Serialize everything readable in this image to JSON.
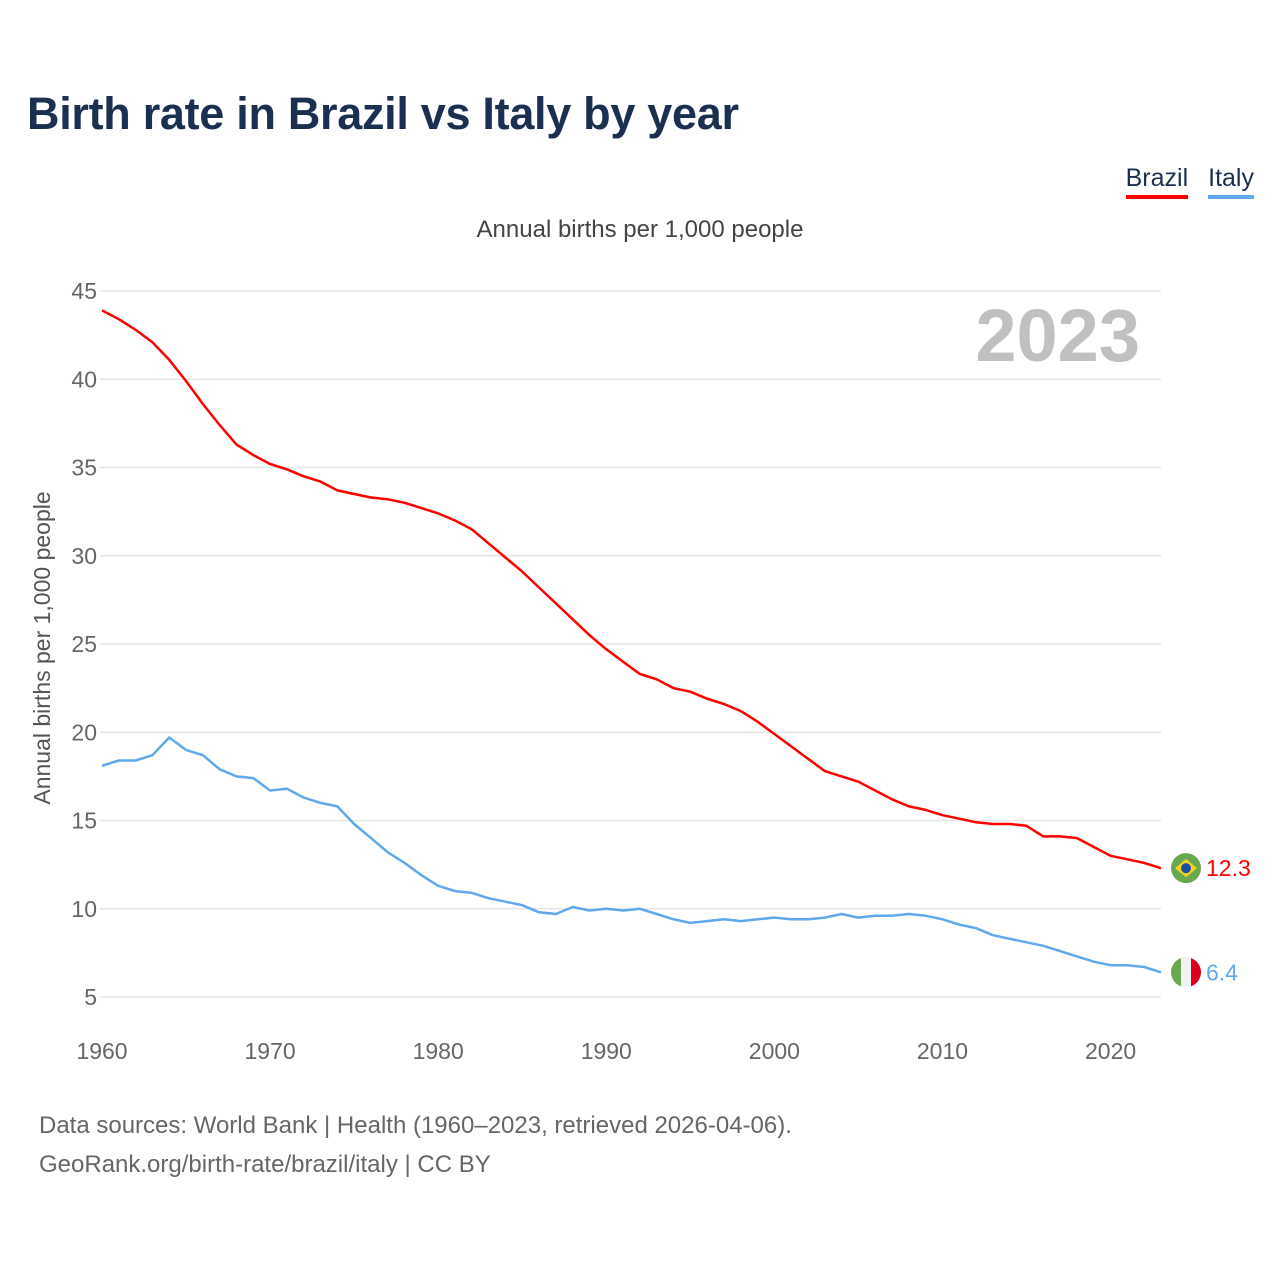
{
  "title": "Birth rate in Brazil vs Italy by year",
  "footer": {
    "line1": "Data sources: World Bank | Health (1960–2023, retrieved 2026-04-06).",
    "line2": "GeoRank.org/birth-rate/brazil/italy | CC BY"
  },
  "chart_data": {
    "type": "line",
    "title": "Birth rate in Brazil vs Italy by year",
    "subtitle": "Annual births per 1,000 people",
    "xlabel": "",
    "ylabel": "Annual births per 1,000 people",
    "year_label": "2023",
    "xlim": [
      1960,
      2023
    ],
    "ylim": [
      5,
      45
    ],
    "x_ticks": [
      "1960",
      "1970",
      "1980",
      "1990",
      "2000",
      "2010",
      "2020"
    ],
    "y_ticks": [
      "5",
      "10",
      "15",
      "20",
      "25",
      "30",
      "35",
      "40",
      "45"
    ],
    "grid": true,
    "legend_position": "top-right",
    "x": [
      1960,
      1961,
      1962,
      1963,
      1964,
      1965,
      1966,
      1967,
      1968,
      1969,
      1970,
      1971,
      1972,
      1973,
      1974,
      1975,
      1976,
      1977,
      1978,
      1979,
      1980,
      1981,
      1982,
      1983,
      1984,
      1985,
      1986,
      1987,
      1988,
      1989,
      1990,
      1991,
      1992,
      1993,
      1994,
      1995,
      1996,
      1997,
      1998,
      1999,
      2000,
      2001,
      2002,
      2003,
      2004,
      2005,
      2006,
      2007,
      2008,
      2009,
      2010,
      2011,
      2012,
      2013,
      2014,
      2015,
      2016,
      2017,
      2018,
      2019,
      2020,
      2021,
      2022,
      2023
    ],
    "series": [
      {
        "name": "Brazil",
        "color": "#ff0000",
        "end_label": "12.3",
        "flag": "brazil-flag",
        "values": [
          43.9,
          43.4,
          42.8,
          42.1,
          41.1,
          39.9,
          38.6,
          37.4,
          36.3,
          35.7,
          35.2,
          34.9,
          34.5,
          34.2,
          33.7,
          33.5,
          33.3,
          33.2,
          33.0,
          32.7,
          32.4,
          32.0,
          31.5,
          30.7,
          29.9,
          29.1,
          28.2,
          27.3,
          26.4,
          25.5,
          24.7,
          24.0,
          23.3,
          23.0,
          22.5,
          22.3,
          21.9,
          21.6,
          21.2,
          20.6,
          19.9,
          19.2,
          18.5,
          17.8,
          17.5,
          17.2,
          16.7,
          16.2,
          15.8,
          15.6,
          15.3,
          15.1,
          14.9,
          14.8,
          14.8,
          14.7,
          14.1,
          14.1,
          14.0,
          13.5,
          13.0,
          12.8,
          12.6,
          12.3
        ]
      },
      {
        "name": "Italy",
        "color": "#5fa8ec",
        "end_label": "6.4",
        "flag": "italy-flag",
        "values": [
          18.1,
          18.4,
          18.4,
          18.7,
          19.7,
          19.0,
          18.7,
          17.9,
          17.5,
          17.4,
          16.7,
          16.8,
          16.3,
          16.0,
          15.8,
          14.8,
          14.0,
          13.2,
          12.6,
          11.9,
          11.3,
          11.0,
          10.9,
          10.6,
          10.4,
          10.2,
          9.8,
          9.7,
          10.1,
          9.9,
          10.0,
          9.9,
          10.0,
          9.7,
          9.4,
          9.2,
          9.3,
          9.4,
          9.3,
          9.4,
          9.5,
          9.4,
          9.4,
          9.5,
          9.7,
          9.5,
          9.6,
          9.6,
          9.7,
          9.6,
          9.4,
          9.1,
          8.9,
          8.5,
          8.3,
          8.1,
          7.9,
          7.6,
          7.3,
          7.0,
          6.8,
          6.8,
          6.7,
          6.4
        ]
      }
    ]
  }
}
